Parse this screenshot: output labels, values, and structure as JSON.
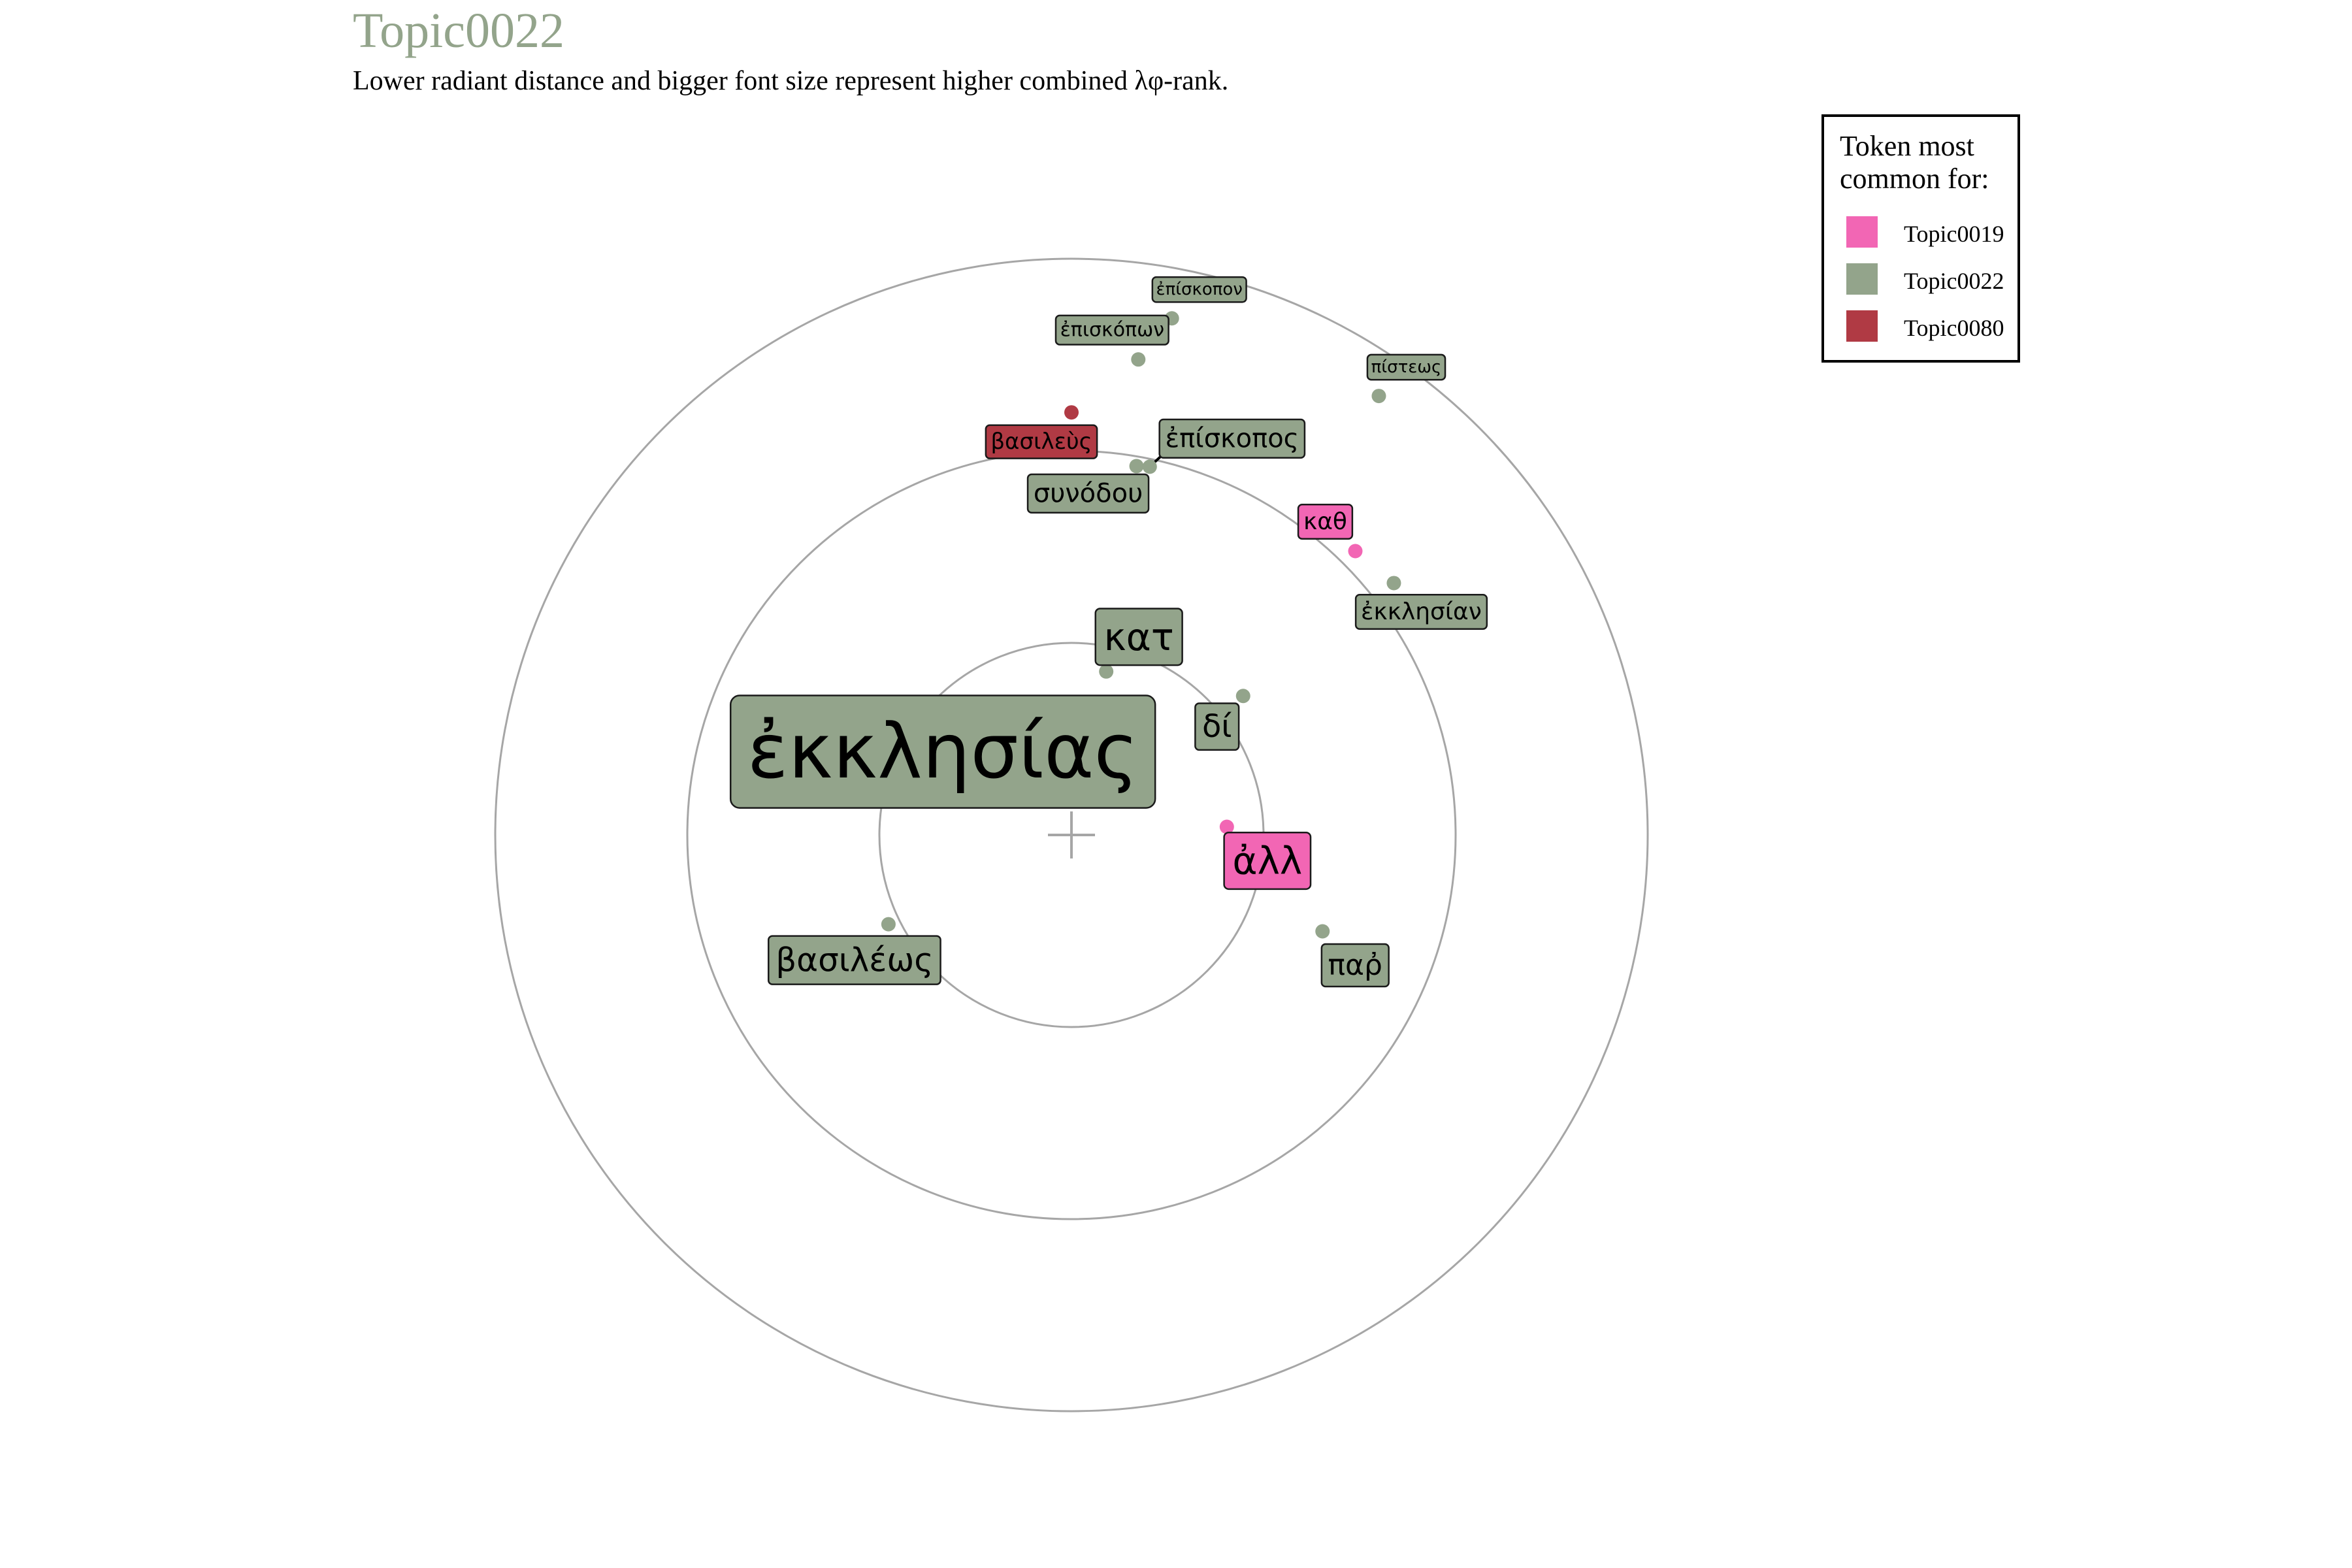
{
  "title": "Topic0022",
  "subtitle": "Lower radiant distance and bigger font size represent higher combined λφ-rank.",
  "legend": {
    "title_line1": "Token most",
    "title_line2": "common for:",
    "items": [
      {
        "label": "Topic0019",
        "color": "#f266b4"
      },
      {
        "label": "Topic0022",
        "color": "#93a48b"
      },
      {
        "label": "Topic0080",
        "color": "#b03a44"
      }
    ]
  },
  "colors": {
    "title": "#93a48b",
    "ring": "#a6a6a6",
    "center_cross": "#a6a6a6",
    "label_border": "#1a1a1a"
  },
  "chart_data": {
    "type": "radial-word-map",
    "title": "Topic0022",
    "rings": 3,
    "tokens": [
      {
        "token": "ἐκκλησίας",
        "topic": "Topic0022",
        "r": 0.19,
        "angle_deg": 97,
        "rank": 1
      },
      {
        "token": "κατ",
        "topic": "Topic0022",
        "r": 0.87,
        "angle_deg": 78,
        "rank": 2
      },
      {
        "token": "ἀλλ",
        "topic": "Topic0019",
        "r": 0.81,
        "angle_deg": 3,
        "rank": 3
      },
      {
        "token": "δί",
        "topic": "Topic0022",
        "r": 1.15,
        "angle_deg": 39,
        "rank": 4
      },
      {
        "token": "βασιλέως",
        "topic": "Topic0022",
        "r": 1.06,
        "angle_deg": 206,
        "rank": 5
      },
      {
        "token": "παῤ",
        "topic": "Topic0022",
        "r": 1.4,
        "angle_deg": -21,
        "rank": 6
      },
      {
        "token": "συνόδου",
        "topic": "Topic0022",
        "r": 1.95,
        "angle_deg": 80,
        "rank": 7
      },
      {
        "token": "ἐπίσκοπος",
        "topic": "Topic0022",
        "r": 1.96,
        "angle_deg": 78,
        "rank": 8
      },
      {
        "token": "ἐκκλησίαν",
        "topic": "Topic0022",
        "r": 2.13,
        "angle_deg": 38,
        "rank": 9
      },
      {
        "token": "καθ",
        "topic": "Topic0019",
        "r": 2.09,
        "angle_deg": 45,
        "rank": 10
      },
      {
        "token": "βασιλεὺς",
        "topic": "Topic0080",
        "r": 2.2,
        "angle_deg": 90,
        "rank": 11
      },
      {
        "token": "ἐπισκόπων",
        "topic": "Topic0022",
        "r": 2.5,
        "angle_deg": 82,
        "rank": 12
      },
      {
        "token": "πίστεως",
        "topic": "Topic0022",
        "r": 2.79,
        "angle_deg": 55,
        "rank": 13
      },
      {
        "token": "ἐπίσκοπον",
        "topic": "Topic0022",
        "r": 2.74,
        "angle_deg": 79,
        "rank": 14
      }
    ]
  }
}
